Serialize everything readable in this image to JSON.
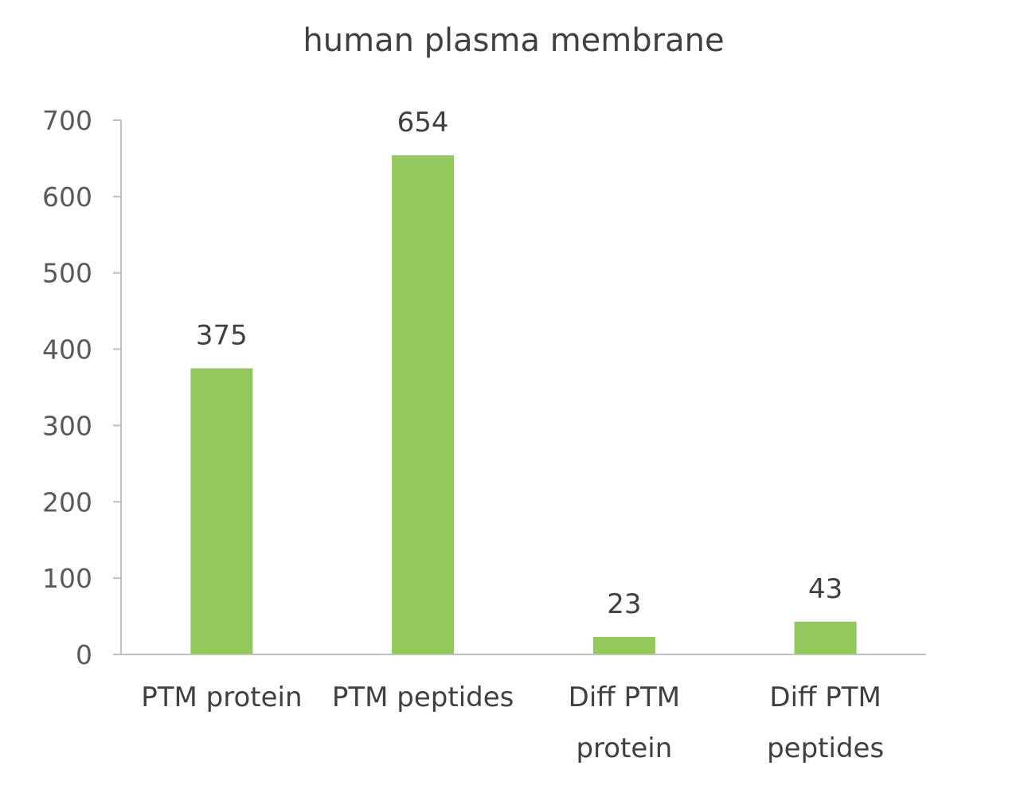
{
  "chart_data": {
    "type": "bar",
    "title": "human plasma membrane",
    "xlabel": "",
    "ylabel": "",
    "categories": [
      "PTM protein",
      "PTM peptides",
      "Diff PTM protein",
      "Diff PTM peptides"
    ],
    "category_lines": [
      [
        "PTM protein"
      ],
      [
        "PTM peptides"
      ],
      [
        "Diff PTM",
        "protein"
      ],
      [
        "Diff PTM",
        "peptides"
      ]
    ],
    "values": [
      375,
      654,
      23,
      43
    ],
    "data_labels": [
      "375",
      "654",
      "23",
      "43"
    ],
    "ylim": [
      0,
      700
    ],
    "yticks": [
      0,
      100,
      200,
      300,
      400,
      500,
      600,
      700
    ],
    "grid": false,
    "legend": "none",
    "bar_color": "#92c85d"
  }
}
